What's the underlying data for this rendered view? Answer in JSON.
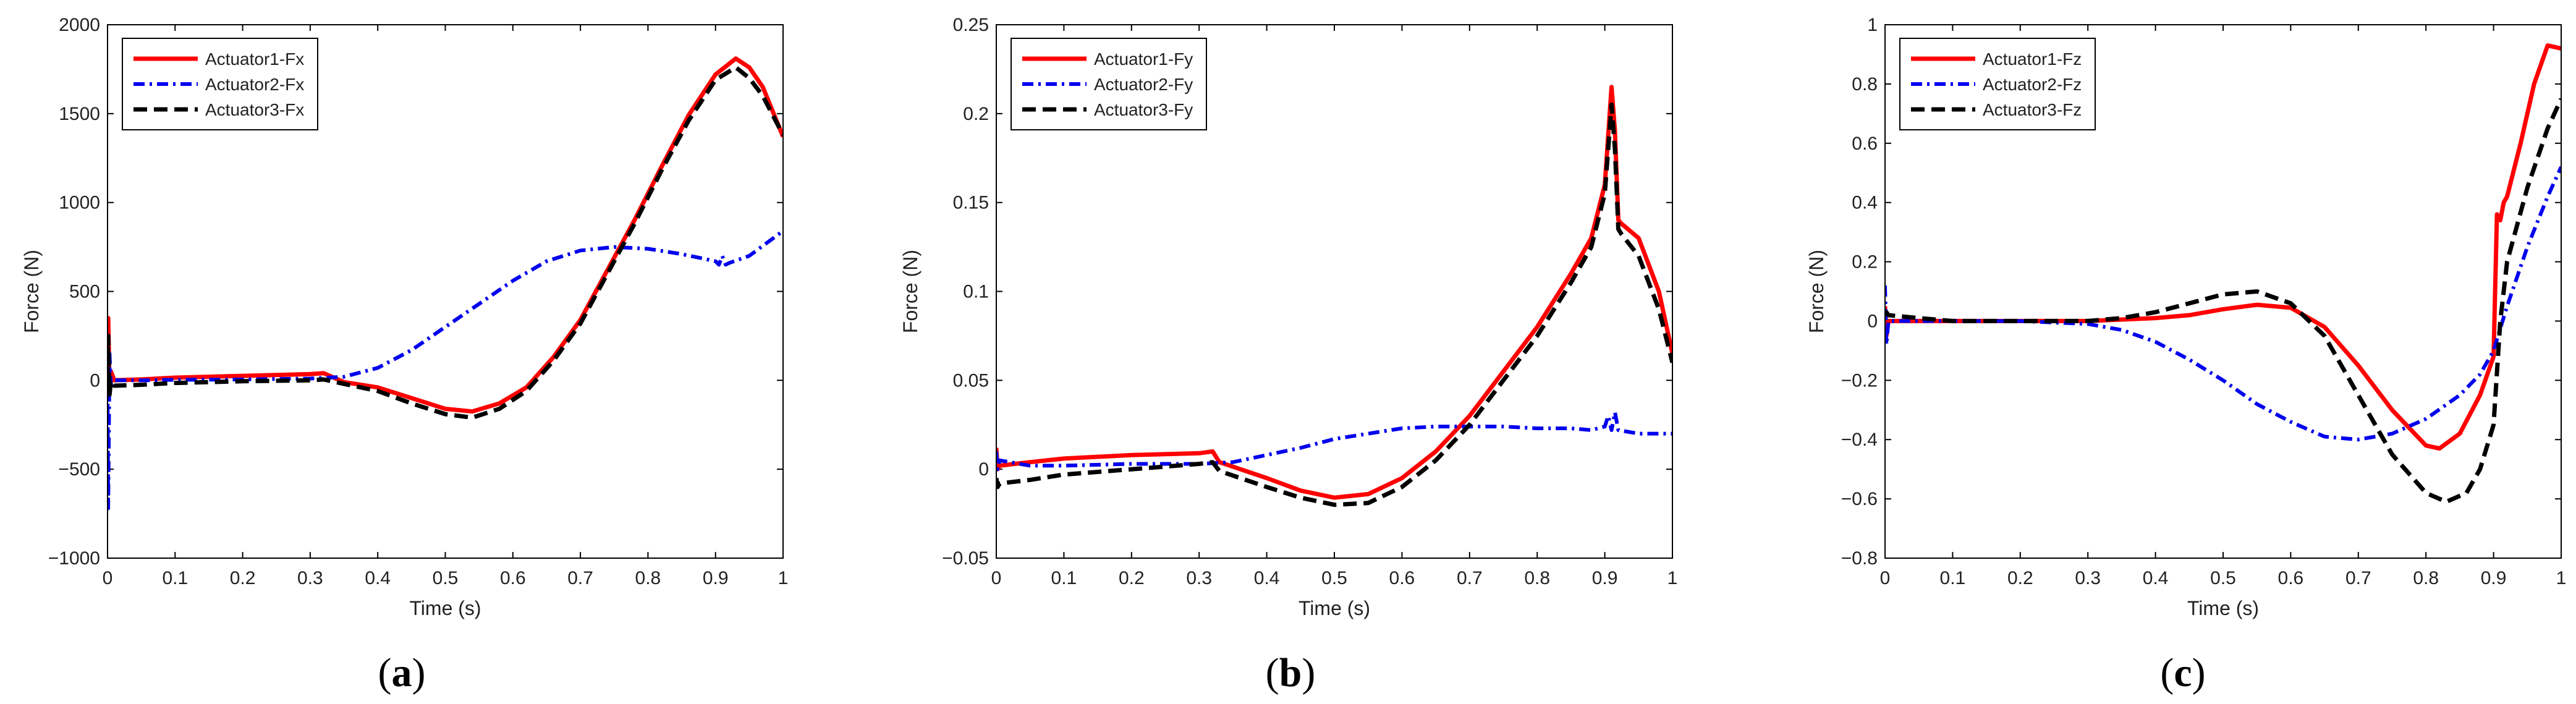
{
  "figure": {
    "panel_labels": [
      {
        "open": "(",
        "letter": "a",
        "close": ")"
      },
      {
        "open": "(",
        "letter": "b",
        "close": ")"
      },
      {
        "open": "(",
        "letter": "c",
        "close": ")"
      }
    ]
  },
  "chart_data": [
    {
      "type": "line",
      "title": "",
      "xlabel": "Time (s)",
      "ylabel": "Force (N)",
      "xlim": [
        0,
        1
      ],
      "ylim": [
        -1000,
        2000
      ],
      "xticks": [
        0,
        0.1,
        0.2,
        0.3,
        0.4,
        0.5,
        0.6,
        0.7,
        0.8,
        0.9,
        1
      ],
      "xtick_labels": [
        "0",
        "0.1",
        "0.2",
        "0.3",
        "0.4",
        "0.5",
        "0.6",
        "0.7",
        "0.8",
        "0.9",
        "1"
      ],
      "yticks": [
        -1000,
        -500,
        0,
        500,
        1000,
        1500,
        2000
      ],
      "ytick_labels": [
        "−1000",
        "−500",
        "0",
        "500",
        "1000",
        "1500",
        "2000"
      ],
      "legend_position": "top-left",
      "series": [
        {
          "name": "Actuator1-Fx",
          "color": "#ff0000",
          "style": "solid",
          "x": [
            0,
            0.001,
            0.003,
            0.005,
            0.01,
            0.05,
            0.1,
            0.2,
            0.3,
            0.32,
            0.35,
            0.4,
            0.45,
            0.5,
            0.54,
            0.58,
            0.62,
            0.66,
            0.7,
            0.74,
            0.78,
            0.82,
            0.86,
            0.9,
            0.93,
            0.95,
            0.97,
            1.0
          ],
          "y": [
            0,
            350,
            -50,
            50,
            0,
            5,
            15,
            25,
            35,
            40,
            -10,
            -40,
            -100,
            -160,
            -175,
            -130,
            -40,
            130,
            340,
            620,
            900,
            1200,
            1490,
            1720,
            1810,
            1760,
            1650,
            1370
          ]
        },
        {
          "name": "Actuator2-Fx",
          "color": "#0000ee",
          "style": "dashdot",
          "x": [
            0,
            0.001,
            0.003,
            0.005,
            0.01,
            0.05,
            0.1,
            0.2,
            0.3,
            0.35,
            0.4,
            0.45,
            0.5,
            0.55,
            0.6,
            0.65,
            0.7,
            0.75,
            0.8,
            0.85,
            0.9,
            0.905,
            0.91,
            0.915,
            0.92,
            0.95,
            1.0
          ],
          "y": [
            0,
            -720,
            150,
            -50,
            0,
            0,
            3,
            5,
            10,
            20,
            70,
            170,
            300,
            430,
            560,
            670,
            730,
            750,
            740,
            710,
            670,
            650,
            700,
            650,
            660,
            700,
            840
          ]
        },
        {
          "name": "Actuator3-Fx",
          "color": "#000000",
          "style": "dashed",
          "x": [
            0,
            0.001,
            0.003,
            0.005,
            0.01,
            0.05,
            0.1,
            0.2,
            0.3,
            0.32,
            0.35,
            0.4,
            0.45,
            0.5,
            0.54,
            0.58,
            0.62,
            0.66,
            0.7,
            0.74,
            0.78,
            0.82,
            0.86,
            0.9,
            0.93,
            0.95,
            0.97,
            1.0
          ],
          "y": [
            0,
            250,
            -80,
            0,
            -30,
            -25,
            -15,
            -5,
            0,
            5,
            -20,
            -60,
            -130,
            -190,
            -210,
            -160,
            -60,
            110,
            320,
            600,
            880,
            1180,
            1460,
            1690,
            1760,
            1700,
            1600,
            1380
          ]
        }
      ]
    },
    {
      "type": "line",
      "title": "",
      "xlabel": "Time (s)",
      "ylabel": "Force (N)",
      "xlim": [
        0,
        1
      ],
      "ylim": [
        -0.05,
        0.25
      ],
      "xticks": [
        0,
        0.1,
        0.2,
        0.3,
        0.4,
        0.5,
        0.6,
        0.7,
        0.8,
        0.9,
        1
      ],
      "xtick_labels": [
        "0",
        "0.1",
        "0.2",
        "0.3",
        "0.4",
        "0.5",
        "0.6",
        "0.7",
        "0.8",
        "0.9",
        "1"
      ],
      "yticks": [
        -0.05,
        0,
        0.05,
        0.1,
        0.15,
        0.2,
        0.25
      ],
      "ytick_labels": [
        "−0.05",
        "0",
        "0.05",
        "0.1",
        "0.15",
        "0.2",
        "0.25"
      ],
      "legend_position": "top-left",
      "series": [
        {
          "name": "Actuator1-Fy",
          "color": "#ff0000",
          "style": "solid",
          "x": [
            0,
            0.002,
            0.005,
            0.05,
            0.1,
            0.2,
            0.3,
            0.32,
            0.33,
            0.4,
            0.45,
            0.5,
            0.55,
            0.6,
            0.65,
            0.7,
            0.75,
            0.8,
            0.85,
            0.88,
            0.9,
            0.91,
            0.915,
            0.92,
            0.925,
            0.95,
            0.98,
            1.0
          ],
          "y": [
            0.012,
            0.0,
            0.002,
            0.004,
            0.006,
            0.008,
            0.009,
            0.01,
            0.004,
            -0.005,
            -0.012,
            -0.016,
            -0.014,
            -0.005,
            0.01,
            0.03,
            0.055,
            0.08,
            0.11,
            0.13,
            0.16,
            0.215,
            0.19,
            0.14,
            0.138,
            0.13,
            0.1,
            0.065
          ]
        },
        {
          "name": "Actuator2-Fy",
          "color": "#0000ee",
          "style": "dashdot",
          "x": [
            0,
            0.002,
            0.005,
            0.05,
            0.1,
            0.2,
            0.3,
            0.35,
            0.4,
            0.45,
            0.5,
            0.55,
            0.6,
            0.65,
            0.7,
            0.75,
            0.8,
            0.85,
            0.88,
            0.9,
            0.905,
            0.91,
            0.915,
            0.92,
            0.95,
            1.0
          ],
          "y": [
            0.01,
            0.0,
            0.005,
            0.002,
            0.002,
            0.003,
            0.003,
            0.004,
            0.008,
            0.012,
            0.017,
            0.02,
            0.023,
            0.024,
            0.024,
            0.024,
            0.023,
            0.023,
            0.022,
            0.024,
            0.03,
            0.022,
            0.032,
            0.022,
            0.02,
            0.02
          ]
        },
        {
          "name": "Actuator3-Fy",
          "color": "#000000",
          "style": "dashed",
          "x": [
            0,
            0.002,
            0.005,
            0.05,
            0.1,
            0.2,
            0.3,
            0.32,
            0.33,
            0.4,
            0.45,
            0.5,
            0.55,
            0.6,
            0.65,
            0.7,
            0.75,
            0.8,
            0.85,
            0.88,
            0.9,
            0.91,
            0.915,
            0.92,
            0.925,
            0.95,
            0.98,
            1.0
          ],
          "y": [
            -0.005,
            -0.01,
            -0.008,
            -0.006,
            -0.003,
            0.0,
            0.003,
            0.004,
            -0.001,
            -0.01,
            -0.016,
            -0.02,
            -0.019,
            -0.01,
            0.005,
            0.025,
            0.05,
            0.075,
            0.105,
            0.125,
            0.155,
            0.205,
            0.18,
            0.135,
            0.132,
            0.12,
            0.09,
            0.06
          ]
        }
      ]
    },
    {
      "type": "line",
      "title": "",
      "xlabel": "Time (s)",
      "ylabel": "Force (N)",
      "xlim": [
        0,
        1
      ],
      "ylim": [
        -0.8,
        1
      ],
      "xticks": [
        0,
        0.1,
        0.2,
        0.3,
        0.4,
        0.5,
        0.6,
        0.7,
        0.8,
        0.9,
        1
      ],
      "xtick_labels": [
        "0",
        "0.1",
        "0.2",
        "0.3",
        "0.4",
        "0.5",
        "0.6",
        "0.7",
        "0.8",
        "0.9",
        "1"
      ],
      "yticks": [
        -0.8,
        -0.6,
        -0.4,
        -0.2,
        0,
        0.2,
        0.4,
        0.6,
        0.8,
        1
      ],
      "ytick_labels": [
        "−0.8",
        "−0.6",
        "−0.4",
        "−0.2",
        "0",
        "0.2",
        "0.4",
        "0.6",
        "0.8",
        "1"
      ],
      "legend_position": "top-left",
      "series": [
        {
          "name": "Actuator1-Fz",
          "color": "#ff0000",
          "style": "solid",
          "x": [
            0,
            0.002,
            0.005,
            0.05,
            0.1,
            0.2,
            0.3,
            0.35,
            0.4,
            0.45,
            0.5,
            0.55,
            0.6,
            0.65,
            0.7,
            0.75,
            0.8,
            0.82,
            0.85,
            0.88,
            0.9,
            0.905,
            0.91,
            0.915,
            0.92,
            0.94,
            0.96,
            0.98,
            1.0
          ],
          "y": [
            0.05,
            -0.05,
            0.0,
            0.0,
            0.0,
            0.0,
            0.0,
            0.005,
            0.01,
            0.02,
            0.04,
            0.055,
            0.045,
            -0.02,
            -0.15,
            -0.3,
            -0.42,
            -0.43,
            -0.38,
            -0.25,
            -0.12,
            0.36,
            0.34,
            0.4,
            0.42,
            0.6,
            0.8,
            0.93,
            0.92
          ]
        },
        {
          "name": "Actuator2-Fz",
          "color": "#0000ee",
          "style": "dashdot",
          "x": [
            0,
            0.002,
            0.005,
            0.05,
            0.1,
            0.2,
            0.3,
            0.35,
            0.4,
            0.45,
            0.5,
            0.55,
            0.6,
            0.65,
            0.7,
            0.75,
            0.8,
            0.85,
            0.88,
            0.9,
            0.92,
            0.95,
            0.98,
            1.0
          ],
          "y": [
            0.12,
            -0.08,
            0.0,
            0.0,
            0.0,
            0.0,
            -0.01,
            -0.03,
            -0.07,
            -0.13,
            -0.2,
            -0.28,
            -0.34,
            -0.39,
            -0.4,
            -0.38,
            -0.33,
            -0.25,
            -0.18,
            -0.1,
            0.05,
            0.25,
            0.42,
            0.52
          ]
        },
        {
          "name": "Actuator3-Fz",
          "color": "#000000",
          "style": "dashed",
          "x": [
            0,
            0.002,
            0.005,
            0.05,
            0.1,
            0.2,
            0.3,
            0.35,
            0.4,
            0.45,
            0.5,
            0.55,
            0.6,
            0.65,
            0.7,
            0.75,
            0.8,
            0.83,
            0.86,
            0.88,
            0.9,
            0.91,
            0.92,
            0.95,
            0.98,
            1.0
          ],
          "y": [
            0.02,
            0.03,
            0.02,
            0.01,
            0.0,
            0.0,
            0.0,
            0.01,
            0.03,
            0.06,
            0.09,
            0.1,
            0.06,
            -0.05,
            -0.25,
            -0.45,
            -0.58,
            -0.61,
            -0.58,
            -0.5,
            -0.35,
            0.0,
            0.2,
            0.45,
            0.65,
            0.75
          ]
        }
      ]
    }
  ]
}
